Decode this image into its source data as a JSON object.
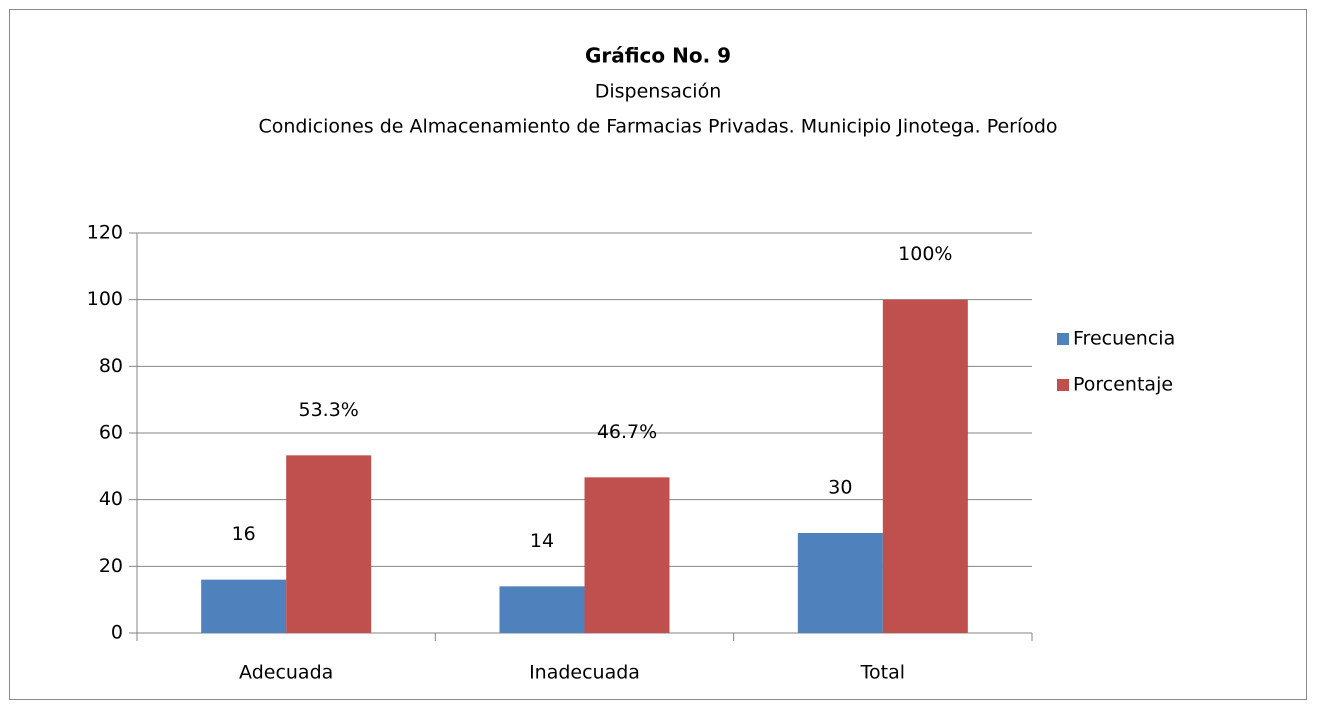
{
  "chart_data": {
    "type": "bar",
    "title": "Gráfico No.  9",
    "subtitle": [
      "Dispensación",
      "Condiciones de Almacenamiento de Farmacias Privadas. Municipio Jinotega. Período"
    ],
    "categories": [
      "Adecuada",
      "Inadecuada",
      "Total"
    ],
    "series": [
      {
        "name": "Frecuencia",
        "color": "#4f81bd",
        "values": [
          16,
          14,
          30
        ]
      },
      {
        "name": "Porcentaje",
        "color": "#c0504d",
        "values": [
          53.3,
          46.7,
          100
        ],
        "value_labels": [
          "53.3%",
          "46.7%",
          "100%"
        ]
      }
    ],
    "ylim": [
      0,
      120
    ],
    "yticks": [
      0,
      20,
      40,
      60,
      80,
      100,
      120
    ],
    "grid": true,
    "legend": "right"
  }
}
